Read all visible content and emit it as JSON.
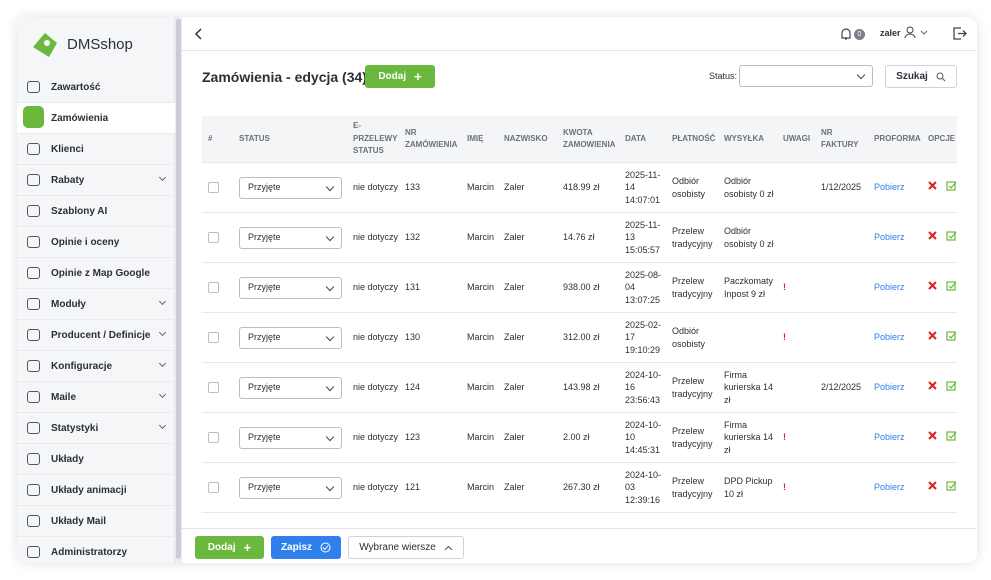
{
  "brand": "DMSshop",
  "menu": [
    {
      "label": "Zawartość"
    },
    {
      "label": "Zamówienia",
      "active": true
    },
    {
      "label": "Klienci"
    },
    {
      "label": "Rabaty",
      "expandable": true
    },
    {
      "label": "Szablony AI"
    },
    {
      "label": "Opinie i oceny"
    },
    {
      "label": "Opinie z Map Google"
    },
    {
      "label": "Moduły",
      "expandable": true
    },
    {
      "label": "Producent / Definicje",
      "expandable": true
    },
    {
      "label": "Konfiguracje",
      "expandable": true
    },
    {
      "label": "Maile",
      "expandable": true
    },
    {
      "label": "Statystyki",
      "expandable": true
    },
    {
      "label": "Układy"
    },
    {
      "label": "Układy animacji"
    },
    {
      "label": "Układy Mail"
    },
    {
      "label": "Administratorzy"
    }
  ],
  "topbar": {
    "notifications": "0",
    "user": "zaler"
  },
  "header": {
    "title": "Zamówienia - edycja (34)",
    "add_button": "Dodaj",
    "status_label": "Status:",
    "search_button": "Szukaj"
  },
  "table": {
    "columns": [
      "#",
      "STATUS",
      "E-PRZELEWY STATUS",
      "NR ZAMÓWIENIA",
      "IMIĘ",
      "NAZWISKO",
      "KWOTA ZAMOWIENIA",
      "DATA",
      "PŁATNOŚĆ",
      "WYSYŁKA",
      "UWAGI",
      "NR FAKTURY",
      "PROFORMA",
      "OPCJE"
    ],
    "rows": [
      {
        "status": "Przyjęte",
        "epay": "nie dotyczy",
        "nr": "133",
        "first": "Marcin",
        "last": "Zaler",
        "amount": "418.99 zł",
        "date": "2025-11-14 14:07:01",
        "payment": "Odbiór osobisty",
        "shipping": "Odbiór osobisty 0 zł",
        "invoice": "1/12/2025",
        "proforma": "Pobierz"
      },
      {
        "status": "Przyjęte",
        "epay": "nie dotyczy",
        "nr": "132",
        "first": "Marcin",
        "last": "Zaler",
        "amount": "14.76 zł",
        "date": "2025-11-13 15:05:57",
        "payment": "Przelew tradycyjny",
        "shipping": "Odbiór osobisty 0 zł",
        "proforma": "Pobierz"
      },
      {
        "status": "Przyjęte",
        "epay": "nie dotyczy",
        "nr": "131",
        "first": "Marcin",
        "last": "Zaler",
        "amount": "938.00 zł",
        "date": "2025-08-04 13:07:25",
        "payment": "Przelew tradycyjny",
        "shipping": "Paczkomaty Inpost 9 zł",
        "note": "!",
        "proforma": "Pobierz"
      },
      {
        "status": "Przyjęte",
        "epay": "nie dotyczy",
        "nr": "130",
        "first": "Marcin",
        "last": "Zaler",
        "amount": "312.00 zł",
        "date": "2025-02-17 19:10:29",
        "payment": "Odbiór osobisty",
        "note": "!",
        "proforma": "Pobierz"
      },
      {
        "status": "Przyjęte",
        "epay": "nie dotyczy",
        "nr": "124",
        "first": "Marcin",
        "last": "Zaler",
        "amount": "143.98 zł",
        "date": "2024-10-16 23:56:43",
        "payment": "Przelew tradycyjny",
        "shipping": "Firma kurierska 14 zł",
        "invoice": "2/12/2025",
        "proforma": "Pobierz"
      },
      {
        "status": "Przyjęte",
        "epay": "nie dotyczy",
        "nr": "123",
        "first": "Marcin",
        "last": "Zaler",
        "amount": "2.00 zł",
        "date": "2024-10-10 14:45:31",
        "payment": "Przelew tradycyjny",
        "shipping": "Firma kurierska 14 zł",
        "note": "!",
        "proforma": "Pobierz"
      },
      {
        "status": "Przyjęte",
        "epay": "nie dotyczy",
        "nr": "121",
        "first": "Marcin",
        "last": "Zaler",
        "amount": "267.30 zł",
        "date": "2024-10-03 12:39:16",
        "payment": "Przelew tradycyjny",
        "shipping": "DPD Pickup 10 zł",
        "note": "!",
        "proforma": "Pobierz"
      }
    ]
  },
  "footer": {
    "add_button": "Dodaj",
    "save_button": "Zapisz",
    "selected_rows": "Wybrane wiersze"
  }
}
